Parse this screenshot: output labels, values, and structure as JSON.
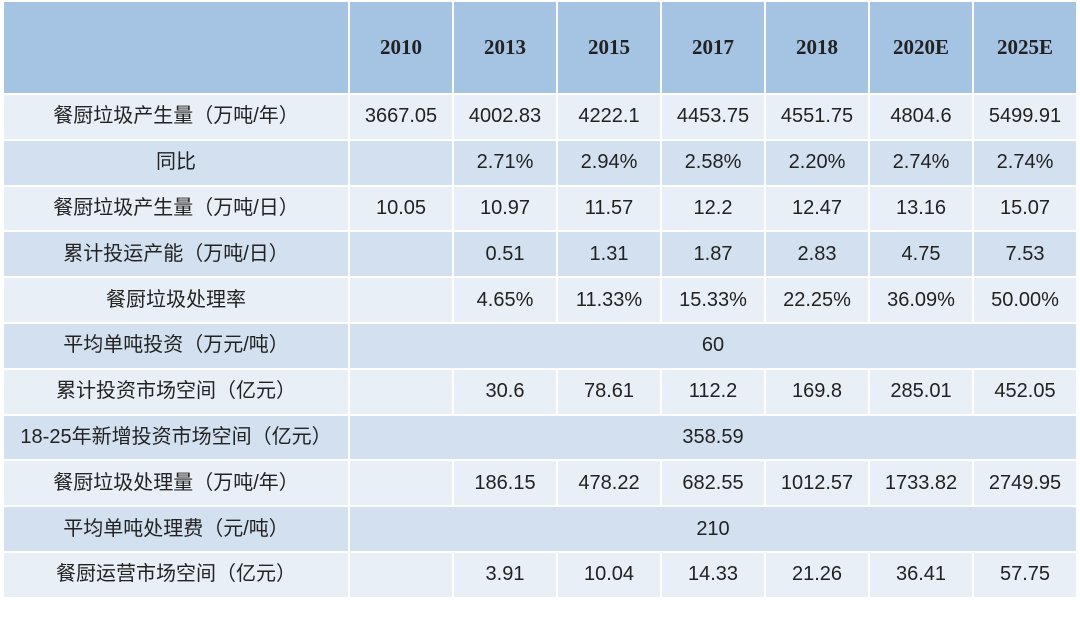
{
  "table": {
    "header": [
      "2010",
      "2013",
      "2015",
      "2017",
      "2018",
      "2020E",
      "2025E"
    ],
    "rows": [
      {
        "label": "餐厨垃圾产生量（万吨/年）",
        "values": [
          "3667.05",
          "4002.83",
          "4222.1",
          "4453.75",
          "4551.75",
          "4804.6",
          "5499.91"
        ]
      },
      {
        "label": "同比",
        "values": [
          null,
          "2.71%",
          "2.94%",
          "2.58%",
          "2.20%",
          "2.74%",
          "2.74%"
        ]
      },
      {
        "label": "餐厨垃圾产生量（万吨/日）",
        "values": [
          "10.05",
          "10.97",
          "11.57",
          "12.2",
          "12.47",
          "13.16",
          "15.07"
        ]
      },
      {
        "label": "累计投运产能（万吨/日）",
        "values": [
          null,
          "0.51",
          "1.31",
          "1.87",
          "2.83",
          "4.75",
          "7.53"
        ]
      },
      {
        "label": "餐厨垃圾处理率",
        "values": [
          null,
          "4.65%",
          "11.33%",
          "15.33%",
          "22.25%",
          "36.09%",
          "50.00%"
        ]
      },
      {
        "label": "平均单吨投资（万元/吨）",
        "merged": "60"
      },
      {
        "label": "累计投资市场空间（亿元）",
        "values": [
          null,
          "30.6",
          "78.61",
          "112.2",
          "169.8",
          "285.01",
          "452.05"
        ]
      },
      {
        "label": "18-25年新增投资市场空间（亿元）",
        "merged": "358.59"
      },
      {
        "label": "餐厨垃圾处理量（万吨/年）",
        "values": [
          null,
          "186.15",
          "478.22",
          "682.55",
          "1012.57",
          "1733.82",
          "2749.95"
        ]
      },
      {
        "label": "平均单吨处理费（元/吨）",
        "merged": "210"
      },
      {
        "label": "餐厨运营市场空间（亿元）",
        "values": [
          null,
          "3.91",
          "10.04",
          "14.33",
          "21.26",
          "36.41",
          "57.75"
        ]
      }
    ]
  }
}
